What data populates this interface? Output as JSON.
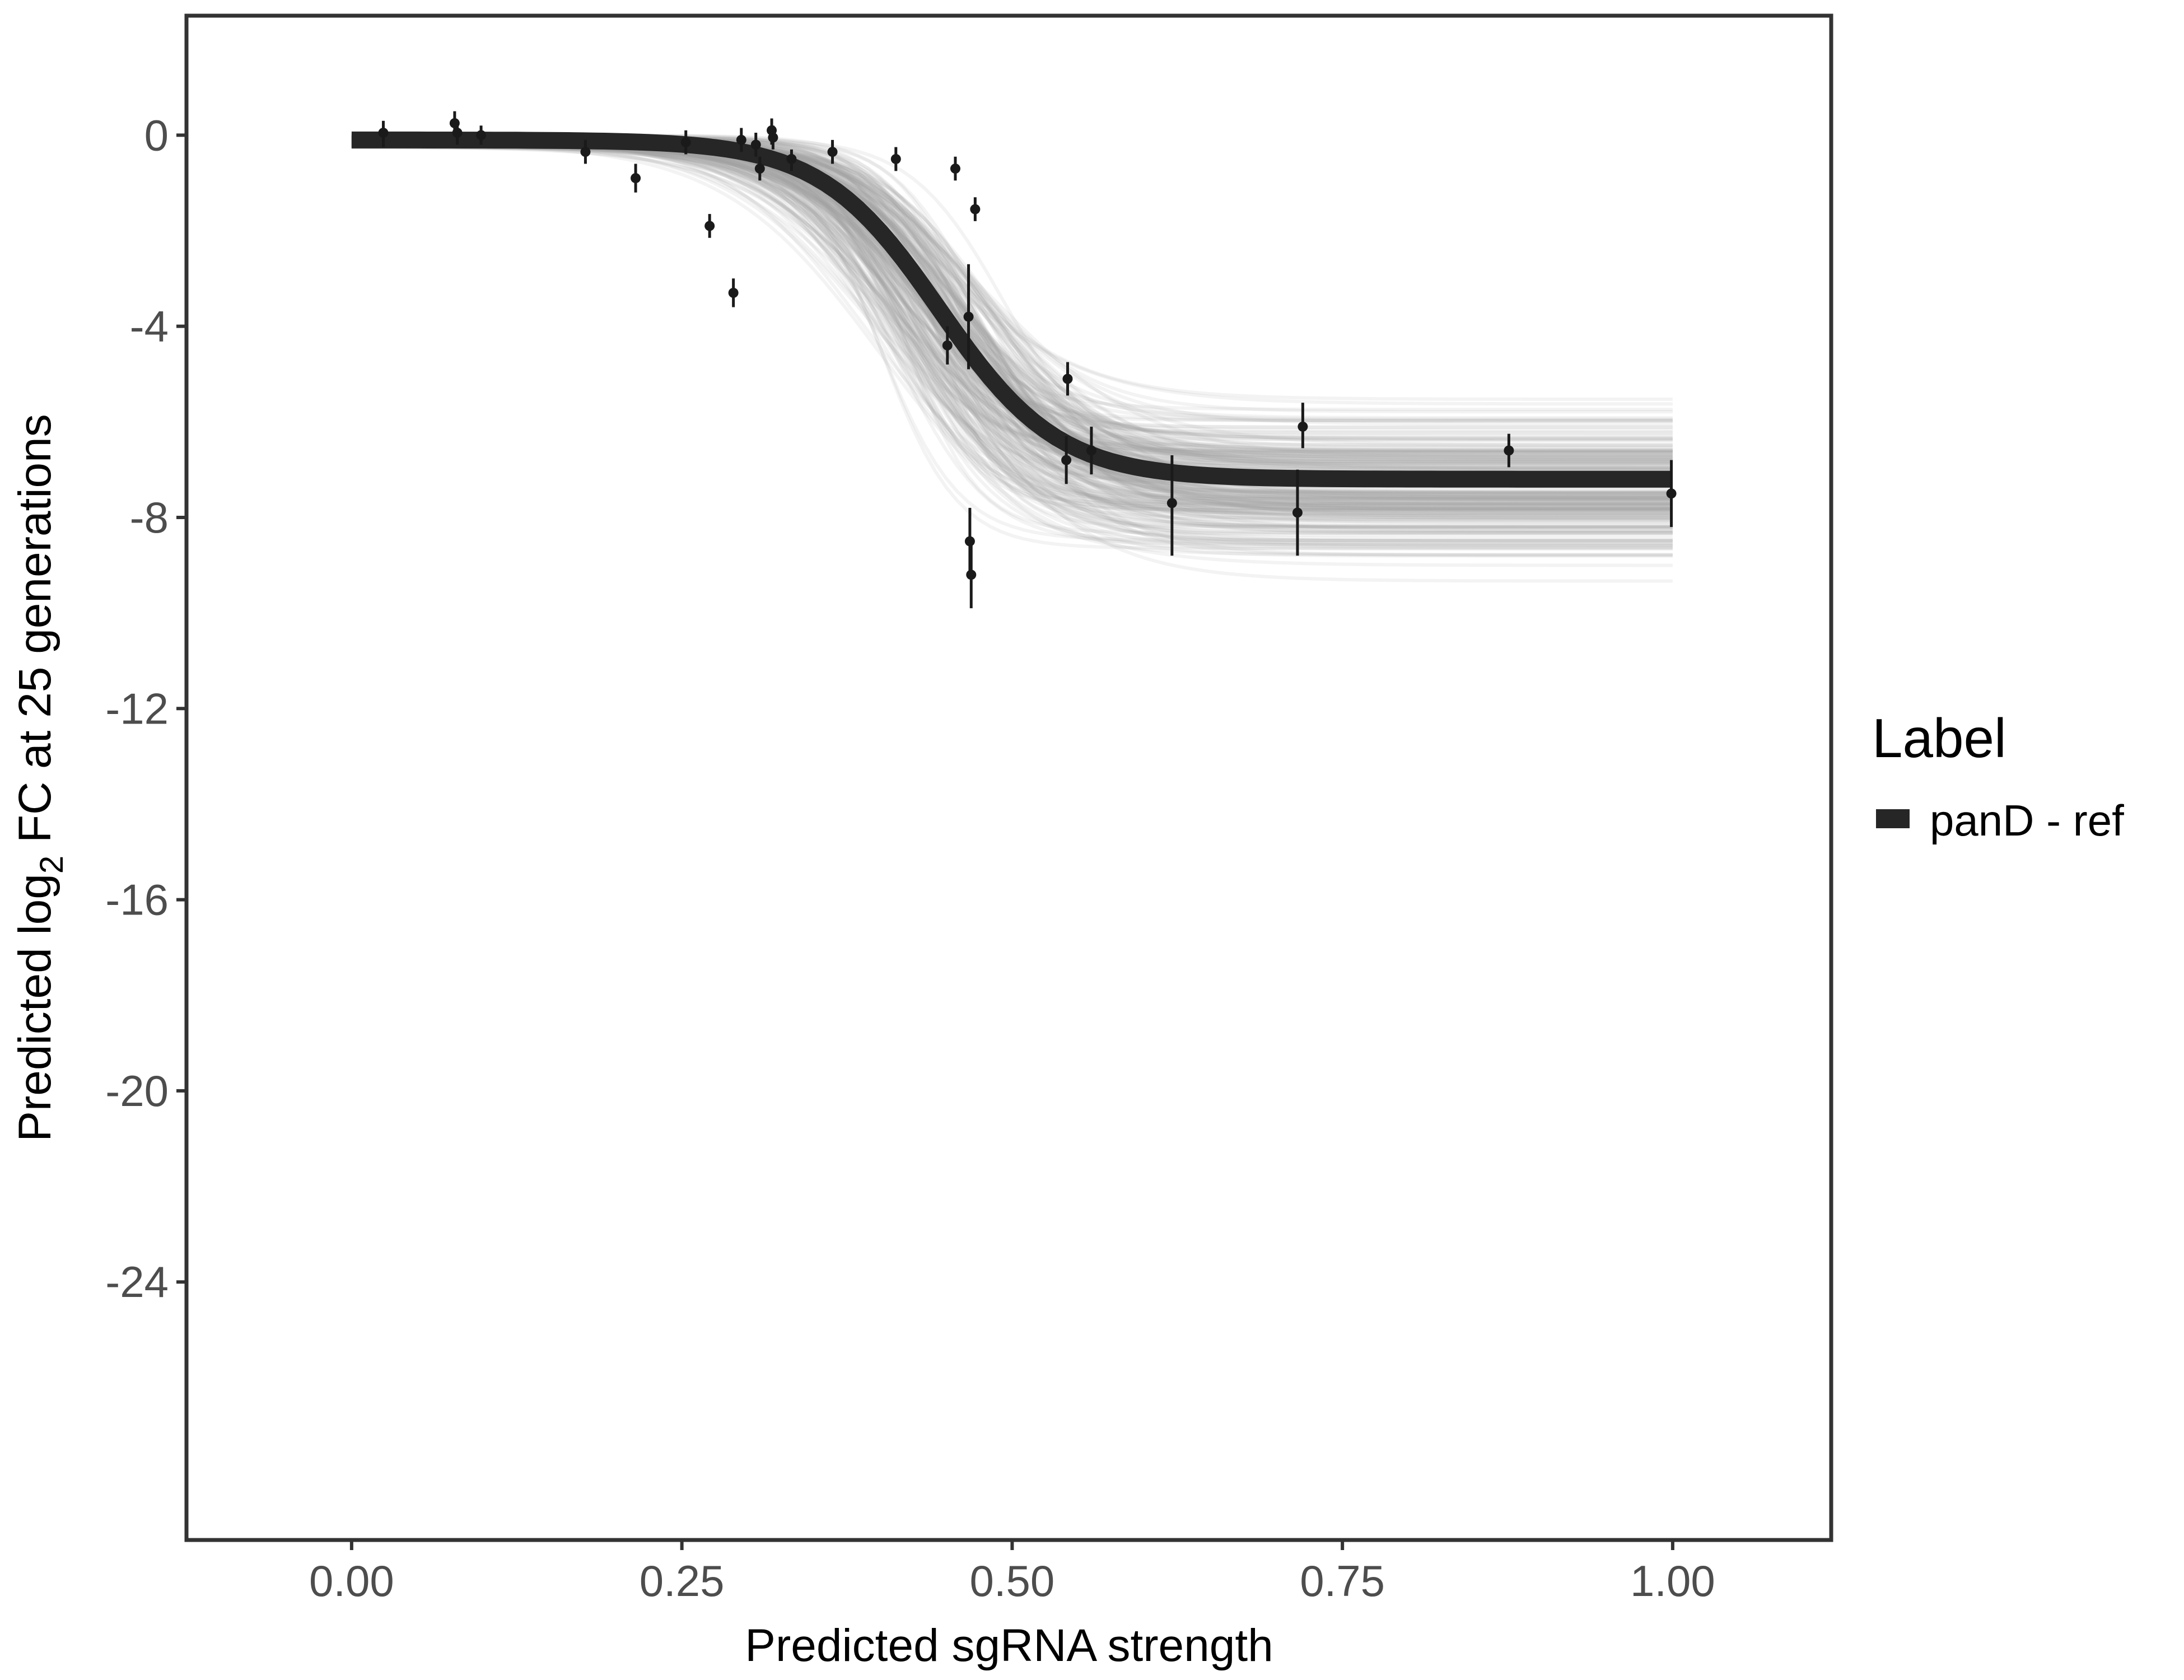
{
  "colors": {
    "background": "#ffffff",
    "panel_border": "#333333",
    "main_curve": "#262626",
    "draw_curves": "#a6a6a6",
    "points": "#1a1a1a",
    "tick_text": "#4d4d4d",
    "title_text": "#000000"
  },
  "chart_data": {
    "type": "line",
    "xlabel": "Predicted sgRNA strength",
    "ylabel": {
      "prefix": "Predicted  log",
      "subscript": "2",
      "suffix": " FC at 25 generations"
    },
    "xlim": [
      -0.125,
      1.12
    ],
    "ylim": [
      -29.4,
      2.5
    ],
    "x_ticks": [
      {
        "value": 0.0,
        "label": "0.00"
      },
      {
        "value": 0.25,
        "label": "0.25"
      },
      {
        "value": 0.5,
        "label": "0.50"
      },
      {
        "value": 0.75,
        "label": "0.75"
      },
      {
        "value": 1.0,
        "label": "1.00"
      }
    ],
    "y_ticks": [
      {
        "value": 0,
        "label": "0"
      },
      {
        "value": -4,
        "label": "-4"
      },
      {
        "value": -8,
        "label": "-8"
      },
      {
        "value": -12,
        "label": "-12"
      },
      {
        "value": -16,
        "label": "-16"
      },
      {
        "value": -20,
        "label": "-20"
      },
      {
        "value": -24,
        "label": "-24"
      }
    ],
    "grid": false,
    "legend": {
      "title": "Label",
      "position": "right",
      "entries": [
        {
          "label": "panD - ref",
          "color": "#262626"
        }
      ]
    },
    "series": [
      {
        "name": "panD - ref",
        "model": "logistic",
        "params": {
          "bottom": -7.2,
          "top": -0.1,
          "midpoint": 0.445,
          "slope": 0.045
        },
        "x_range": [
          0,
          1
        ],
        "line_width": "thick"
      }
    ],
    "posterior_draws": {
      "count": 260,
      "x_range": [
        0,
        1
      ],
      "bottom_range": [
        -9.5,
        -5.3
      ],
      "midpoint_range": [
        0.38,
        0.5
      ],
      "slope_range": [
        0.025,
        0.065
      ],
      "top_range": [
        -0.25,
        0.0
      ],
      "color": "#a6a6a6"
    },
    "points": [
      {
        "x": 0.024,
        "y": 0.05,
        "lo": -0.25,
        "hi": 0.3
      },
      {
        "x": 0.078,
        "y": 0.25,
        "lo": 0.0,
        "hi": 0.5
      },
      {
        "x": 0.08,
        "y": 0.05,
        "lo": -0.2,
        "hi": 0.3
      },
      {
        "x": 0.098,
        "y": 0.0,
        "lo": -0.2,
        "hi": 0.2
      },
      {
        "x": 0.177,
        "y": -0.35,
        "lo": -0.6,
        "hi": -0.1
      },
      {
        "x": 0.215,
        "y": -0.9,
        "lo": -1.2,
        "hi": -0.6
      },
      {
        "x": 0.253,
        "y": -0.15,
        "lo": -0.4,
        "hi": 0.1
      },
      {
        "x": 0.271,
        "y": -1.9,
        "lo": -2.15,
        "hi": -1.65
      },
      {
        "x": 0.289,
        "y": -3.3,
        "lo": -3.6,
        "hi": -3.0
      },
      {
        "x": 0.295,
        "y": -0.1,
        "lo": -0.35,
        "hi": 0.15
      },
      {
        "x": 0.306,
        "y": -0.2,
        "lo": -0.45,
        "hi": 0.05
      },
      {
        "x": 0.309,
        "y": -0.7,
        "lo": -0.95,
        "hi": -0.45
      },
      {
        "x": 0.318,
        "y": 0.1,
        "lo": -0.2,
        "hi": 0.35
      },
      {
        "x": 0.319,
        "y": -0.05,
        "lo": -0.3,
        "hi": 0.2
      },
      {
        "x": 0.333,
        "y": -0.5,
        "lo": -0.75,
        "hi": -0.3
      },
      {
        "x": 0.364,
        "y": -0.35,
        "lo": -0.6,
        "hi": -0.1
      },
      {
        "x": 0.412,
        "y": -0.5,
        "lo": -0.75,
        "hi": -0.25
      },
      {
        "x": 0.451,
        "y": -4.4,
        "lo": -4.8,
        "hi": -4.0
      },
      {
        "x": 0.457,
        "y": -0.7,
        "lo": -0.95,
        "hi": -0.45
      },
      {
        "x": 0.467,
        "y": -3.8,
        "lo": -4.9,
        "hi": -2.7
      },
      {
        "x": 0.468,
        "y": -8.5,
        "lo": -9.2,
        "hi": -7.8
      },
      {
        "x": 0.469,
        "y": -9.2,
        "lo": -9.9,
        "hi": -8.5
      },
      {
        "x": 0.472,
        "y": -1.55,
        "lo": -1.8,
        "hi": -1.3
      },
      {
        "x": 0.541,
        "y": -6.8,
        "lo": -7.3,
        "hi": -6.3
      },
      {
        "x": 0.542,
        "y": -5.1,
        "lo": -5.45,
        "hi": -4.75
      },
      {
        "x": 0.56,
        "y": -6.6,
        "lo": -7.1,
        "hi": -6.1
      },
      {
        "x": 0.621,
        "y": -7.7,
        "lo": -8.8,
        "hi": -6.7
      },
      {
        "x": 0.716,
        "y": -7.9,
        "lo": -8.8,
        "hi": -7.0
      },
      {
        "x": 0.72,
        "y": -6.1,
        "lo": -6.55,
        "hi": -5.6
      },
      {
        "x": 0.876,
        "y": -6.6,
        "lo": -6.95,
        "hi": -6.25
      },
      {
        "x": 0.999,
        "y": -7.5,
        "lo": -8.2,
        "hi": -6.8
      }
    ]
  }
}
